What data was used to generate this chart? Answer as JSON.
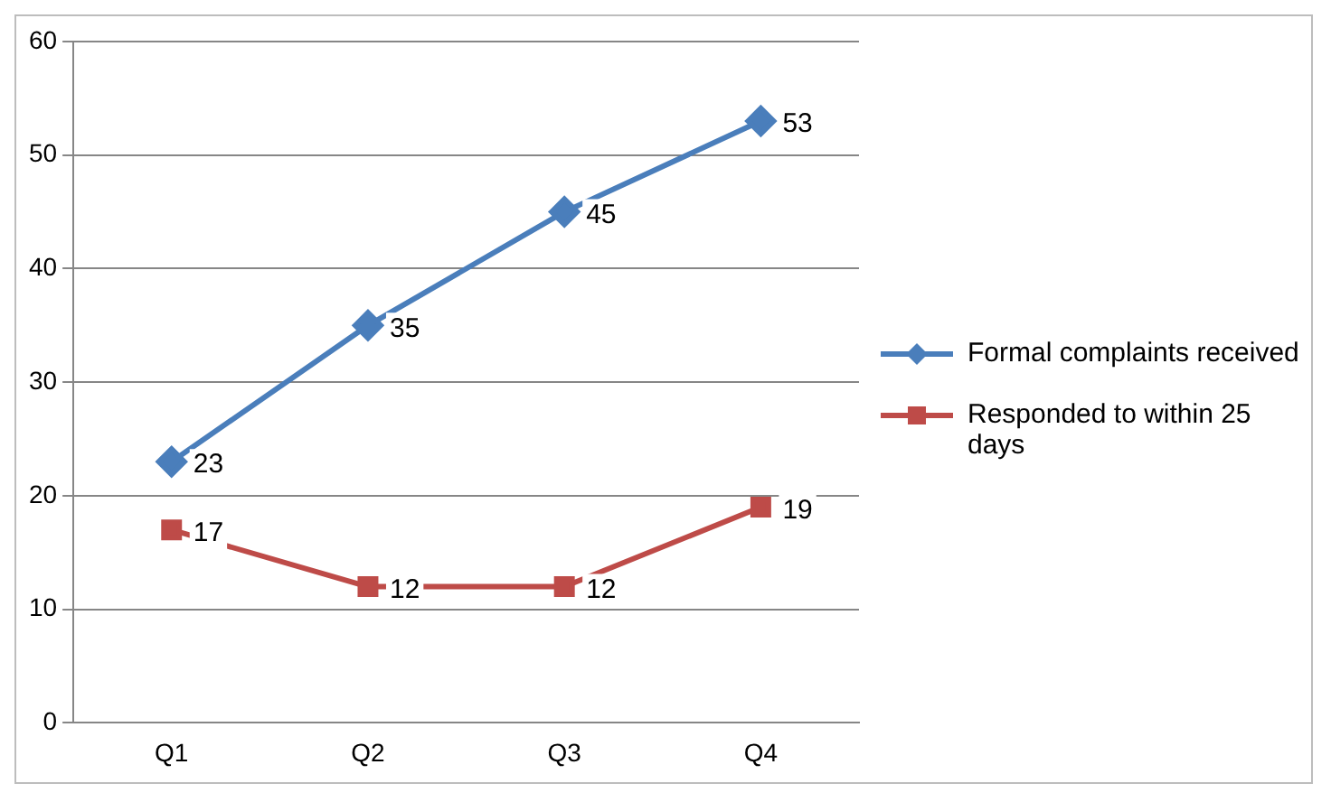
{
  "chart_data": {
    "type": "line",
    "categories": [
      "Q1",
      "Q2",
      "Q3",
      "Q4"
    ],
    "series": [
      {
        "name": "Formal complaints received",
        "color": "#4a7ebb",
        "marker": "diamond",
        "values": [
          23,
          35,
          45,
          53
        ]
      },
      {
        "name": "Responded to within 25 days",
        "color": "#be4b48",
        "marker": "square",
        "values": [
          17,
          12,
          12,
          19
        ]
      }
    ],
    "ylim": [
      0,
      60
    ],
    "yticks": [
      0,
      10,
      20,
      30,
      40,
      50,
      60
    ],
    "grid": "y",
    "legend": "right",
    "data_labels": true,
    "line_style": "solid"
  }
}
